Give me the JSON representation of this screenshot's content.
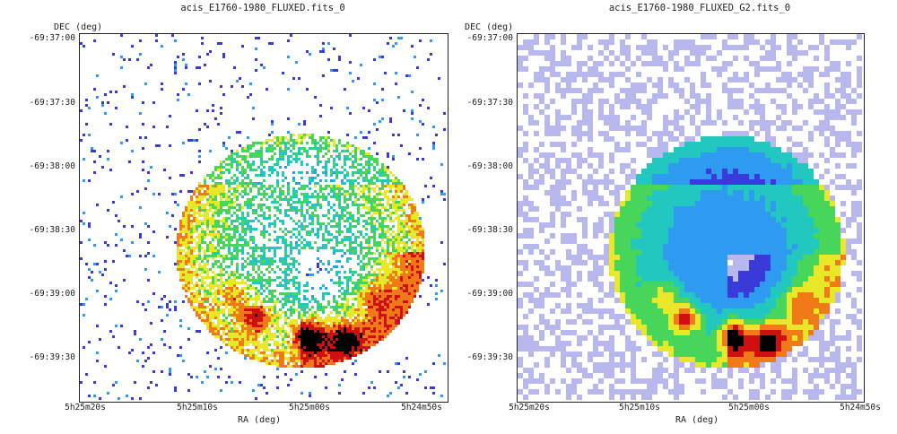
{
  "chart_data": [
    {
      "type": "heatmap",
      "title": "acis_E1760-1980_FLUXED.fits_0",
      "xlabel": "RA (deg)",
      "ylabel": "DEC (deg)",
      "x_ticks": [
        "5h25m20s",
        "5h25m10s",
        "5h25m00s",
        "5h24m50s"
      ],
      "y_ticks": [
        "-69:37:00",
        "-69:37:30",
        "-69:38:00",
        "-69:38:30",
        "-69:39:00",
        "-69:39:30"
      ],
      "rendering": "binned event counts",
      "colormap": [
        "#ffffff",
        "#3a3ad8",
        "#2f9bf0",
        "#22c8c0",
        "#48d65a",
        "#e8e828",
        "#f07a18",
        "#d01010",
        "#000000"
      ]
    },
    {
      "type": "heatmap",
      "title": "acis_E1760-1980_FLUXED_G2.fits_0",
      "xlabel": "RA (deg)",
      "ylabel": "DEC (deg)",
      "x_ticks": [
        "5h25m20s",
        "5h25m10s",
        "5h25m00s",
        "5h24m50s"
      ],
      "y_ticks": [
        "-69:37:00",
        "-69:37:30",
        "-69:38:00",
        "-69:38:30",
        "-69:39:00",
        "-69:39:30"
      ],
      "rendering": "gaussian smoothed",
      "colormap": [
        "#ffffff",
        "#b8b8ee",
        "#3a3ad8",
        "#2f9bf0",
        "#22c8c0",
        "#48d65a",
        "#e8e828",
        "#f07a18",
        "#d01010",
        "#000000"
      ]
    }
  ]
}
